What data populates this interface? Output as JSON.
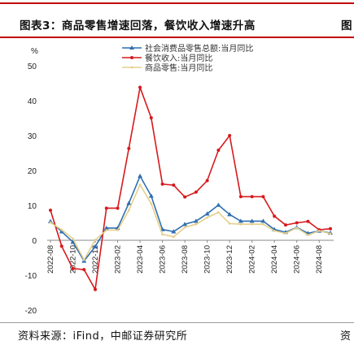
{
  "header": {
    "title": "图表3：商品零售增速回落，餐饮收入增速升高",
    "next_title_fragment": "图"
  },
  "footer": {
    "source": "资料来源：iFind，中邮证券研究所",
    "next_source_fragment": "资"
  },
  "colors": {
    "rule": "#c00000",
    "retail_total": "#2f6fb0",
    "catering": "#d7191c",
    "goods": "#e6cf8b"
  },
  "chart_data": {
    "type": "line",
    "yunit": "%",
    "ylim": [
      -20,
      50
    ],
    "yticks": [
      -20,
      -10,
      0,
      10,
      20,
      30,
      40,
      50
    ],
    "x": [
      "2022-08",
      "2022-09",
      "2022-10",
      "2022-11",
      "2022-12",
      "2023-01",
      "2023-02",
      "2023-03",
      "2023-04",
      "2023-05",
      "2023-06",
      "2023-07",
      "2023-08",
      "2023-09",
      "2023-10",
      "2023-11",
      "2023-12",
      "2023-01b",
      "2023-02b",
      "2024-02",
      "2024-03",
      "2024-04",
      "2024-05",
      "2024-06",
      "2024-07",
      "2024-08"
    ],
    "xticklabels": [
      "2022-08",
      "2022-10",
      "2022-12",
      "2023-02",
      "2023-04",
      "2023-06",
      "2023-08",
      "2023-10",
      "2023-12",
      "2024-02",
      "2024-04",
      "2024-06",
      "2024-08"
    ],
    "legend_position": "top-center",
    "series": [
      {
        "name": "社会消费品零售总额:当月同比",
        "color": "#2f6fb0",
        "values": [
          5.4,
          2.5,
          -0.5,
          -5.9,
          -1.8,
          3.5,
          3.5,
          10.6,
          18.4,
          12.7,
          3.1,
          2.5,
          4.6,
          5.5,
          7.6,
          10.1,
          7.4,
          5.5,
          5.5,
          5.5,
          3.1,
          2.3,
          3.7,
          2.0,
          2.7,
          2.1
        ]
      },
      {
        "name": "餐饮收入:当月同比",
        "color": "#d7191c",
        "values": [
          8.6,
          -1.7,
          -8.1,
          -8.4,
          -14.1,
          9.2,
          9.2,
          26.3,
          43.8,
          35.1,
          16.1,
          15.8,
          12.4,
          13.8,
          17.1,
          25.8,
          30.0,
          12.5,
          12.5,
          12.5,
          6.9,
          4.4,
          5.0,
          5.4,
          3.0,
          3.3
        ]
      },
      {
        "name": "商品零售:当月同比",
        "color": "#e6cf8b",
        "values": [
          5.1,
          3.0,
          0.5,
          -5.6,
          0.1,
          2.9,
          2.9,
          8.6,
          15.9,
          10.5,
          1.7,
          1.0,
          3.7,
          4.6,
          6.5,
          8.0,
          4.8,
          4.6,
          4.6,
          4.6,
          2.7,
          2.0,
          3.6,
          1.5,
          2.7,
          1.9
        ]
      }
    ]
  }
}
